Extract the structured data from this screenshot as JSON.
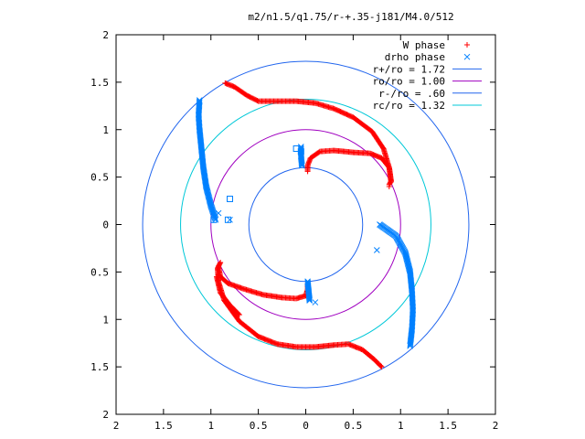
{
  "chart_data": {
    "type": "scatter",
    "title": "m2/n1.5/q1.75/r-+.35-j181/M4.0/512",
    "xlim": [
      -2,
      2
    ],
    "ylim": [
      -2,
      2
    ],
    "x_ticks": [
      -2,
      -1.5,
      -1,
      -0.5,
      0,
      0.5,
      1,
      1.5,
      2
    ],
    "y_ticks": [
      -2,
      -1.5,
      -1,
      -0.5,
      0,
      0.5,
      1,
      1.5,
      2
    ],
    "x_tick_labels": [
      "2",
      "1.5",
      "1",
      "0.5",
      "0",
      "0.5",
      "1",
      "1.5",
      "2"
    ],
    "y_tick_labels": [
      "2",
      "1.5",
      "1",
      "0.5",
      "0",
      "0.5",
      "1",
      "1.5",
      "2"
    ],
    "grid": false,
    "legend_position": "top-right",
    "series": [
      {
        "name": "W phase",
        "marker": "+",
        "color": "#ff0000",
        "strands": [
          [
            [
              -0.85,
              1.49
            ],
            [
              -0.75,
              1.45
            ],
            [
              -0.62,
              1.36
            ],
            [
              -0.5,
              1.3
            ],
            [
              -0.3,
              1.3
            ],
            [
              -0.1,
              1.3
            ],
            [
              0.1,
              1.28
            ],
            [
              0.3,
              1.22
            ],
            [
              0.5,
              1.13
            ],
            [
              0.7,
              0.98
            ],
            [
              0.82,
              0.8
            ],
            [
              0.88,
              0.6
            ],
            [
              0.9,
              0.46
            ],
            [
              0.88,
              0.42
            ]
          ],
          [
            [
              0.9,
              0.45
            ],
            [
              0.88,
              0.6
            ],
            [
              0.8,
              0.7
            ],
            [
              0.68,
              0.75
            ],
            [
              0.5,
              0.76
            ],
            [
              0.3,
              0.78
            ],
            [
              0.15,
              0.77
            ],
            [
              0.05,
              0.7
            ],
            [
              0.02,
              0.62
            ],
            [
              0.02,
              0.56
            ]
          ],
          [
            [
              0.8,
              -1.5
            ],
            [
              0.72,
              -1.42
            ],
            [
              0.6,
              -1.32
            ],
            [
              0.45,
              -1.26
            ],
            [
              0.3,
              -1.27
            ],
            [
              0.1,
              -1.29
            ],
            [
              -0.1,
              -1.29
            ],
            [
              -0.3,
              -1.26
            ],
            [
              -0.5,
              -1.18
            ],
            [
              -0.7,
              -1.02
            ],
            [
              -0.86,
              -0.8
            ],
            [
              -0.92,
              -0.6
            ],
            [
              -0.93,
              -0.46
            ],
            [
              -0.9,
              -0.4
            ]
          ],
          [
            [
              -0.92,
              -0.44
            ],
            [
              -0.9,
              -0.55
            ],
            [
              -0.82,
              -0.62
            ],
            [
              -0.65,
              -0.68
            ],
            [
              -0.45,
              -0.74
            ],
            [
              -0.25,
              -0.77
            ],
            [
              -0.1,
              -0.78
            ],
            [
              0.0,
              -0.75
            ],
            [
              0.02,
              -0.68
            ],
            [
              0.02,
              -0.62
            ]
          ],
          [
            [
              -0.94,
              -0.55
            ],
            [
              -0.9,
              -0.72
            ],
            [
              -0.8,
              -0.85
            ],
            [
              -0.7,
              -0.95
            ]
          ]
        ],
        "isolated_points": [
          [
            0.88,
            0.4
          ]
        ]
      },
      {
        "name": "drho phase",
        "marker": "x",
        "color": "#0080ff",
        "strands": [
          [
            [
              -1.12,
              1.31
            ],
            [
              -1.13,
              1.15
            ],
            [
              -1.12,
              1.0
            ],
            [
              -1.1,
              0.8
            ],
            [
              -1.08,
              0.6
            ],
            [
              -1.05,
              0.4
            ],
            [
              -1.0,
              0.2
            ],
            [
              -0.95,
              0.05
            ]
          ],
          [
            [
              0.78,
              0.0
            ],
            [
              0.85,
              -0.05
            ],
            [
              0.95,
              -0.12
            ],
            [
              1.05,
              -0.3
            ],
            [
              1.1,
              -0.5
            ],
            [
              1.12,
              -0.7
            ],
            [
              1.13,
              -0.9
            ],
            [
              1.12,
              -1.1
            ],
            [
              1.1,
              -1.28
            ]
          ],
          [
            [
              -0.05,
              0.82
            ],
            [
              -0.05,
              0.72
            ],
            [
              -0.04,
              0.62
            ]
          ],
          [
            [
              0.02,
              -0.6
            ],
            [
              0.03,
              -0.7
            ],
            [
              0.04,
              -0.8
            ]
          ]
        ],
        "isolated_points": [
          [
            0.75,
            -0.27
          ],
          [
            0.1,
            -0.82
          ],
          [
            -0.92,
            0.12
          ],
          [
            -0.8,
            0.05
          ]
        ]
      },
      {
        "name": "drho phase (square markers)",
        "marker": "square",
        "color": "#0080ff",
        "strands": [],
        "isolated_points": [
          [
            -0.1,
            0.8
          ],
          [
            -0.8,
            0.27
          ],
          [
            -0.82,
            0.05
          ],
          [
            -0.97,
            0.05
          ],
          [
            -0.05,
            0.77
          ]
        ]
      },
      {
        "name": "r+/ro = 1.72",
        "type": "circle",
        "radius": 1.72,
        "color": "#2266ee"
      },
      {
        "name": "ro/ro = 1.00",
        "type": "circle",
        "radius": 1.0,
        "color": "#a000c0"
      },
      {
        "name": "r-/ro = .60",
        "type": "circle",
        "radius": 0.6,
        "color": "#2266ee"
      },
      {
        "name": "rc/ro = 1.32",
        "type": "circle",
        "radius": 1.32,
        "color": "#00c8d8"
      }
    ],
    "legend": [
      {
        "label": "W phase",
        "marker": "+",
        "color": "#ff0000"
      },
      {
        "label": "drho phase",
        "marker": "x",
        "color": "#0080ff"
      },
      {
        "label": "r+/ro = 1.72",
        "marker": "line",
        "color": "#2266ee"
      },
      {
        "label": "ro/ro = 1.00",
        "marker": "line",
        "color": "#a000c0"
      },
      {
        "label": "r-/ro = .60",
        "marker": "line",
        "color": "#2266ee"
      },
      {
        "label": "rc/ro = 1.32",
        "marker": "line",
        "color": "#00c8d8"
      }
    ]
  }
}
